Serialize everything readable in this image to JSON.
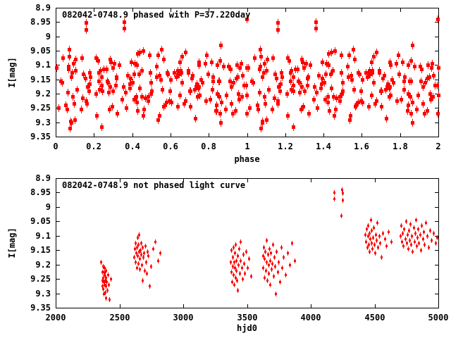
{
  "colors": {
    "background": "#ffffff",
    "axis": "#000000",
    "text": "#000000",
    "points": "#ff0000"
  },
  "chart_data": [
    {
      "type": "scatter",
      "panel": "top",
      "title": "082042-0748.9 phased with P=37.220day",
      "xlabel": "phase",
      "ylabel": "I[mag]",
      "xlim": [
        0,
        2
      ],
      "ylim": [
        8.9,
        9.35
      ],
      "y_axis_inverted_magnitudes": true,
      "grid": false,
      "legend": "none",
      "marker": "red filled square with small vertical error bar",
      "period_days": 37.22,
      "note": "Same observations as bottom panel, phased with P=37.220 days; each observation is plotted twice, at phase and phase+1.",
      "x_ticks": {
        "values": [
          0,
          0.2,
          0.4,
          0.6,
          0.8,
          1,
          1.2,
          1.4,
          1.6,
          1.8,
          2
        ],
        "labels": [
          "0",
          "0.2",
          "0.4",
          "0.6",
          "0.8",
          "1",
          "1.2",
          "1.4",
          "1.6",
          "1.8",
          "2"
        ]
      },
      "y_ticks": {
        "values": [
          8.9,
          8.95,
          9,
          9.05,
          9.1,
          9.15,
          9.2,
          9.25,
          9.3,
          9.35
        ],
        "labels": [
          "8.9",
          "8.95",
          "9",
          "9.05",
          "9.1",
          "9.15",
          "9.2",
          "9.25",
          "9.3",
          "9.35"
        ]
      }
    },
    {
      "type": "scatter",
      "panel": "bottom",
      "title": "082042-0748.9 not phased light curve",
      "xlabel": "hjd0",
      "ylabel": "I[mag]",
      "xlim": [
        2000,
        5000
      ],
      "ylim": [
        8.9,
        9.35
      ],
      "y_axis_inverted_magnitudes": true,
      "grid": false,
      "legend": "none",
      "marker": "small red point with small vertical error bar",
      "x_ticks": {
        "values": [
          2000,
          2500,
          3000,
          3500,
          4000,
          4500,
          5000
        ],
        "labels": [
          "2000",
          "2500",
          "3000",
          "3500",
          "4000",
          "4500",
          "5000"
        ]
      },
      "y_ticks": {
        "values": [
          8.9,
          8.95,
          9,
          9.05,
          9.1,
          9.15,
          9.2,
          9.25,
          9.3,
          9.35
        ],
        "labels": [
          "8.9",
          "8.95",
          "9",
          "9.05",
          "9.1",
          "9.15",
          "9.2",
          "9.25",
          "9.3",
          "9.35"
        ]
      },
      "points": [
        [
          2356,
          9.19
        ],
        [
          2362,
          9.255
        ],
        [
          2365,
          9.275
        ],
        [
          2367,
          9.225
        ],
        [
          2369,
          9.205
        ],
        [
          2371,
          9.245
        ],
        [
          2372,
          9.285
        ],
        [
          2374,
          9.225
        ],
        [
          2376,
          9.26
        ],
        [
          2377,
          9.3
        ],
        [
          2379,
          9.235
        ],
        [
          2381,
          9.21
        ],
        [
          2382,
          9.27
        ],
        [
          2384,
          9.24
        ],
        [
          2385,
          9.295
        ],
        [
          2387,
          9.255
        ],
        [
          2388,
          9.225
        ],
        [
          2390,
          9.275
        ],
        [
          2391,
          9.315
        ],
        [
          2393,
          9.245
        ],
        [
          2395,
          9.22
        ],
        [
          2398,
          9.26
        ],
        [
          2402,
          9.29
        ],
        [
          2407,
          9.235
        ],
        [
          2414,
          9.27
        ],
        [
          2422,
          9.32
        ],
        [
          2433,
          9.25
        ],
        [
          2616,
          9.175
        ],
        [
          2620,
          9.145
        ],
        [
          2624,
          9.19
        ],
        [
          2627,
          9.125
        ],
        [
          2630,
          9.16
        ],
        [
          2633,
          9.21
        ],
        [
          2636,
          9.14
        ],
        [
          2639,
          9.105
        ],
        [
          2642,
          9.17
        ],
        [
          2645,
          9.195
        ],
        [
          2648,
          9.13
        ],
        [
          2651,
          9.155
        ],
        [
          2654,
          9.095
        ],
        [
          2657,
          9.18
        ],
        [
          2660,
          9.215
        ],
        [
          2663,
          9.15
        ],
        [
          2667,
          9.125
        ],
        [
          2670,
          9.165
        ],
        [
          2674,
          9.2
        ],
        [
          2678,
          9.14
        ],
        [
          2682,
          9.255
        ],
        [
          2686,
          9.175
        ],
        [
          2690,
          9.16
        ],
        [
          2695,
          9.22
        ],
        [
          2700,
          9.135
        ],
        [
          2706,
          9.19
        ],
        [
          2712,
          9.23
        ],
        [
          2718,
          9.155
        ],
        [
          2726,
          9.17
        ],
        [
          2734,
          9.275
        ],
        [
          2745,
          9.205
        ],
        [
          2760,
          9.145
        ],
        [
          2778,
          9.12
        ],
        [
          2800,
          9.185
        ],
        [
          2820,
          9.16
        ],
        [
          3372,
          9.19
        ],
        [
          3375,
          9.225
        ],
        [
          3378,
          9.15
        ],
        [
          3381,
          9.26
        ],
        [
          3384,
          9.175
        ],
        [
          3387,
          9.205
        ],
        [
          3390,
          9.14
        ],
        [
          3393,
          9.235
        ],
        [
          3396,
          9.19
        ],
        [
          3399,
          9.27
        ],
        [
          3402,
          9.16
        ],
        [
          3405,
          9.21
        ],
        [
          3408,
          9.245
        ],
        [
          3411,
          9.13
        ],
        [
          3414,
          9.185
        ],
        [
          3417,
          9.22
        ],
        [
          3420,
          9.255
        ],
        [
          3424,
          9.17
        ],
        [
          3428,
          9.29
        ],
        [
          3432,
          9.2
        ],
        [
          3436,
          9.145
        ],
        [
          3440,
          9.23
        ],
        [
          3445,
          9.185
        ],
        [
          3450,
          9.12
        ],
        [
          3456,
          9.21
        ],
        [
          3462,
          9.25
        ],
        [
          3468,
          9.165
        ],
        [
          3475,
          9.195
        ],
        [
          3483,
          9.23
        ],
        [
          3492,
          9.155
        ],
        [
          3502,
          9.21
        ],
        [
          3515,
          9.18
        ],
        [
          3530,
          9.24
        ],
        [
          3622,
          9.17
        ],
        [
          3626,
          9.21
        ],
        [
          3630,
          9.14
        ],
        [
          3634,
          9.245
        ],
        [
          3638,
          9.18
        ],
        [
          3642,
          9.155
        ],
        [
          3646,
          9.22
        ],
        [
          3650,
          9.115
        ],
        [
          3654,
          9.19
        ],
        [
          3658,
          9.255
        ],
        [
          3662,
          9.165
        ],
        [
          3666,
          9.2
        ],
        [
          3670,
          9.23
        ],
        [
          3674,
          9.145
        ],
        [
          3678,
          9.185
        ],
        [
          3682,
          9.27
        ],
        [
          3686,
          9.16
        ],
        [
          3690,
          9.215
        ],
        [
          3695,
          9.195
        ],
        [
          3700,
          9.13
        ],
        [
          3706,
          9.24
        ],
        [
          3712,
          9.175
        ],
        [
          3718,
          9.205
        ],
        [
          3725,
          9.3
        ],
        [
          3732,
          9.155
        ],
        [
          3740,
          9.225
        ],
        [
          3748,
          9.19
        ],
        [
          3757,
          9.26
        ],
        [
          3766,
          9.14
        ],
        [
          3776,
          9.21
        ],
        [
          3787,
          9.175
        ],
        [
          3800,
          9.235
        ],
        [
          3815,
          9.16
        ],
        [
          3832,
          9.2
        ],
        [
          3852,
          9.125
        ],
        [
          3875,
          9.185
        ],
        [
          4182,
          8.949
        ],
        [
          4182,
          8.971
        ],
        [
          4238,
          9.03
        ],
        [
          4243,
          8.94
        ],
        [
          4249,
          8.952
        ],
        [
          4249,
          8.977
        ],
        [
          4428,
          9.095
        ],
        [
          4433,
          9.12
        ],
        [
          4437,
          9.075
        ],
        [
          4441,
          9.14
        ],
        [
          4445,
          9.1
        ],
        [
          4449,
          9.065
        ],
        [
          4453,
          9.13
        ],
        [
          4457,
          9.09
        ],
        [
          4461,
          9.155
        ],
        [
          4465,
          9.11
        ],
        [
          4469,
          9.045
        ],
        [
          4473,
          9.125
        ],
        [
          4477,
          9.08
        ],
        [
          4481,
          9.145
        ],
        [
          4486,
          9.105
        ],
        [
          4491,
          9.07
        ],
        [
          4496,
          9.13
        ],
        [
          4501,
          9.16
        ],
        [
          4507,
          9.095
        ],
        [
          4513,
          9.115
        ],
        [
          4520,
          9.055
        ],
        [
          4527,
          9.14
        ],
        [
          4535,
          9.1
        ],
        [
          4544,
          9.125
        ],
        [
          4554,
          9.175
        ],
        [
          4565,
          9.09
        ],
        [
          4578,
          9.11
        ],
        [
          4592,
          9.135
        ],
        [
          4610,
          9.085
        ],
        [
          4632,
          9.12
        ],
        [
          4702,
          9.1
        ],
        [
          4708,
          9.065
        ],
        [
          4714,
          9.12
        ],
        [
          4720,
          9.09
        ],
        [
          4726,
          9.135
        ],
        [
          4732,
          9.075
        ],
        [
          4738,
          9.11
        ],
        [
          4744,
          9.05
        ],
        [
          4750,
          9.125
        ],
        [
          4756,
          9.095
        ],
        [
          4762,
          9.145
        ],
        [
          4768,
          9.08
        ],
        [
          4774,
          9.115
        ],
        [
          4780,
          9.06
        ],
        [
          4786,
          9.13
        ],
        [
          4792,
          9.1
        ],
        [
          4798,
          9.155
        ],
        [
          4804,
          9.07
        ],
        [
          4810,
          9.12
        ],
        [
          4816,
          9.09
        ],
        [
          4822,
          9.045
        ],
        [
          4828,
          9.135
        ],
        [
          4834,
          9.105
        ],
        [
          4840,
          9.075
        ],
        [
          4847,
          9.125
        ],
        [
          4854,
          9.095
        ],
        [
          4861,
          9.15
        ],
        [
          4868,
          9.065
        ],
        [
          4876,
          9.11
        ],
        [
          4884,
          9.085
        ],
        [
          4892,
          9.13
        ],
        [
          4901,
          9.055
        ],
        [
          4911,
          9.1
        ],
        [
          4922,
          9.14
        ],
        [
          4934,
          9.08
        ],
        [
          4947,
          9.115
        ],
        [
          4961,
          9.09
        ],
        [
          4976,
          9.125
        ],
        [
          4990,
          9.105
        ]
      ]
    }
  ]
}
